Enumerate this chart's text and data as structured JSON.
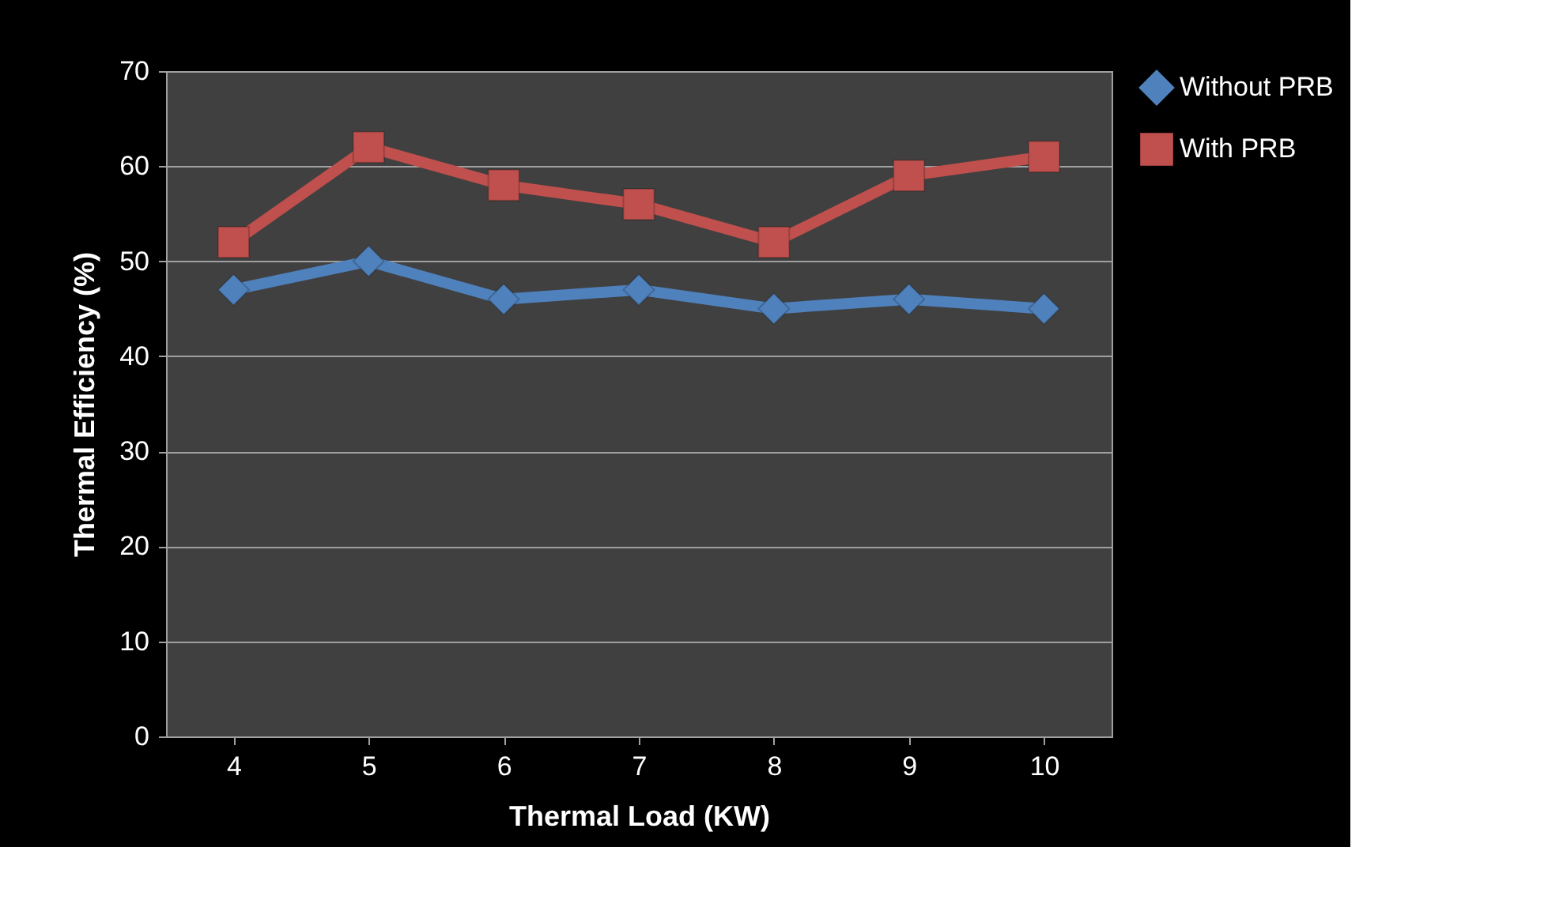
{
  "chart_data": {
    "type": "line",
    "xlabel": "Thermal Load (KW)",
    "ylabel": "Thermal Efficiency (%)",
    "categories": [
      "4",
      "5",
      "6",
      "7",
      "8",
      "9",
      "10"
    ],
    "series": [
      {
        "name": "Without PRB",
        "color": "#4f81bd",
        "marker": "diamond",
        "values": [
          47,
          50,
          46,
          47,
          45,
          46,
          45
        ]
      },
      {
        "name": "With PRB",
        "color": "#c0504d",
        "marker": "square",
        "values": [
          52,
          62,
          58,
          56,
          52,
          59,
          61
        ]
      }
    ],
    "ylim": [
      0,
      70
    ],
    "yticks": [
      0,
      10,
      20,
      30,
      40,
      50,
      60,
      70
    ],
    "grid": "y",
    "legend": "right",
    "line_style": "solid"
  }
}
